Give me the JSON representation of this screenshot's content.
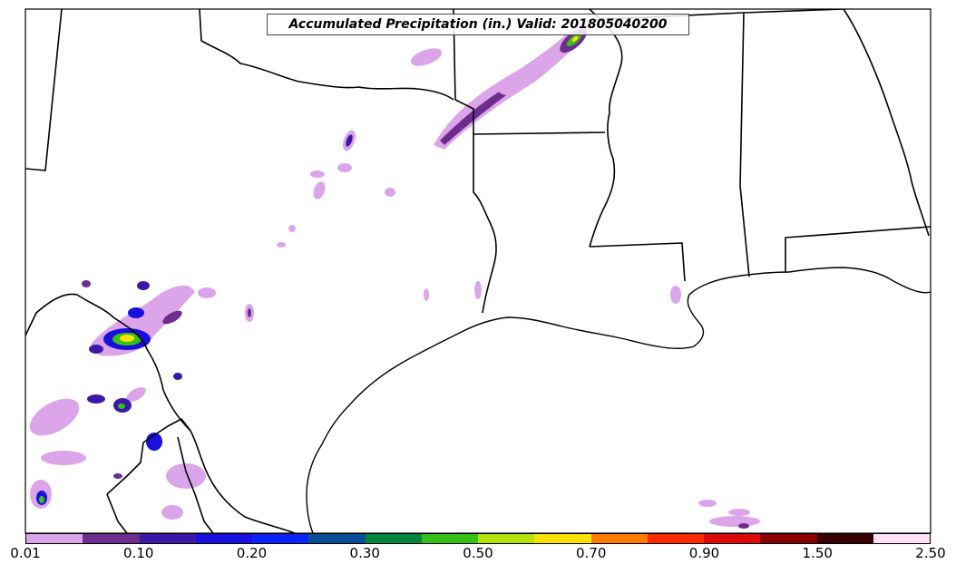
{
  "title": "Accumulated Precipitation (in.) Valid: 201805040200",
  "colorbar": {
    "colors": [
      "#dca5ea",
      "#6e2c8f",
      "#3b18a8",
      "#1a10dd",
      "#0a24f5",
      "#0a4d97",
      "#06863a",
      "#37c118",
      "#b7e10b",
      "#ffe200",
      "#ff7e00",
      "#ff2a00",
      "#dd0a0a",
      "#8a0000",
      "#3a0000",
      "#ffe0f4"
    ],
    "tick_labels": [
      "0.01",
      "0.10",
      "0.20",
      "0.30",
      "0.50",
      "0.70",
      "0.90",
      "1.50",
      "2.50"
    ]
  }
}
